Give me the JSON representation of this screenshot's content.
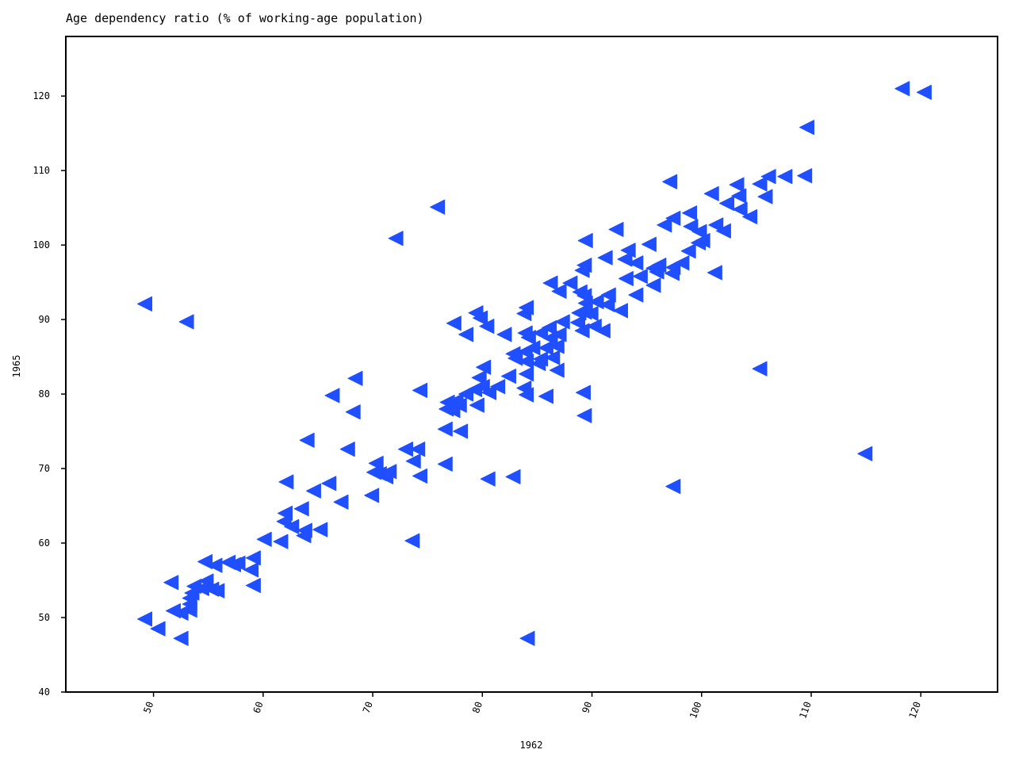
{
  "chart_data": {
    "type": "scatter",
    "title": "Age dependency ratio (% of working-age population)",
    "xlabel": "1962",
    "ylabel": "1965",
    "xlim": [
      42,
      127
    ],
    "ylim": [
      40,
      128
    ],
    "xticks": [
      50,
      60,
      70,
      80,
      90,
      100,
      110,
      120
    ],
    "yticks": [
      40,
      50,
      60,
      70,
      80,
      90,
      100,
      110,
      120
    ],
    "marker": "triangle-left",
    "color": "#1f4fff",
    "grid": false,
    "series": [
      {
        "points": [
          [
            118.3,
            121.0
          ],
          [
            120.3,
            120.5
          ],
          [
            109.6,
            115.8
          ],
          [
            97.1,
            108.5
          ],
          [
            103.2,
            108.1
          ],
          [
            105.3,
            108.2
          ],
          [
            106.1,
            109.2
          ],
          [
            107.6,
            109.2
          ],
          [
            109.4,
            109.3
          ],
          [
            100.9,
            106.9
          ],
          [
            103.4,
            106.6
          ],
          [
            105.8,
            106.5
          ],
          [
            102.3,
            105.6
          ],
          [
            103.5,
            104.8
          ],
          [
            104.4,
            103.8
          ],
          [
            97.4,
            103.6
          ],
          [
            96.6,
            102.7
          ],
          [
            98.9,
            104.3
          ],
          [
            99.0,
            102.5
          ],
          [
            99.8,
            101.8
          ],
          [
            101.3,
            102.7
          ],
          [
            102.0,
            101.9
          ],
          [
            100.1,
            100.6
          ],
          [
            99.7,
            100.3
          ],
          [
            98.8,
            99.2
          ],
          [
            101.2,
            96.3
          ],
          [
            75.9,
            105.1
          ],
          [
            72.1,
            100.9
          ],
          [
            89.4,
            100.6
          ],
          [
            92.2,
            102.1
          ],
          [
            91.2,
            98.3
          ],
          [
            93.3,
            99.3
          ],
          [
            93.0,
            98.1
          ],
          [
            95.2,
            100.1
          ],
          [
            94.0,
            97.6
          ],
          [
            89.3,
            97.3
          ],
          [
            89.1,
            96.6
          ],
          [
            86.2,
            94.9
          ],
          [
            88.0,
            94.9
          ],
          [
            87.0,
            93.8
          ],
          [
            93.1,
            95.5
          ],
          [
            94.4,
            95.8
          ],
          [
            95.6,
            94.6
          ],
          [
            94.0,
            93.3
          ],
          [
            95.6,
            96.9
          ],
          [
            96.1,
            97.3
          ],
          [
            97.4,
            97.0
          ],
          [
            98.2,
            97.6
          ],
          [
            97.3,
            96.2
          ],
          [
            95.9,
            96.4
          ],
          [
            88.9,
            93.7
          ],
          [
            89.3,
            93.2
          ],
          [
            90.4,
            92.4
          ],
          [
            91.5,
            93.3
          ],
          [
            91.4,
            92.0
          ],
          [
            92.6,
            91.2
          ],
          [
            89.3,
            91.0
          ],
          [
            89.9,
            90.8
          ],
          [
            90.2,
            89.1
          ],
          [
            91.0,
            88.5
          ],
          [
            89.1,
            88.5
          ],
          [
            88.7,
            89.6
          ],
          [
            89.4,
            92.2
          ],
          [
            88.8,
            90.9
          ],
          [
            49.2,
            92.1
          ],
          [
            53.0,
            89.7
          ],
          [
            77.4,
            89.5
          ],
          [
            79.4,
            90.9
          ],
          [
            79.8,
            90.2
          ],
          [
            80.4,
            89.1
          ],
          [
            78.5,
            88.0
          ],
          [
            83.8,
            90.8
          ],
          [
            84.0,
            91.6
          ],
          [
            86.1,
            88.9
          ],
          [
            87.3,
            89.7
          ],
          [
            87.0,
            88.0
          ],
          [
            86.8,
            86.4
          ],
          [
            82.0,
            88.0
          ],
          [
            83.9,
            88.2
          ],
          [
            85.3,
            88.2
          ],
          [
            84.2,
            87.6
          ],
          [
            86.2,
            87.5
          ],
          [
            85.8,
            86.2
          ],
          [
            82.8,
            85.4
          ],
          [
            83.9,
            85.7
          ],
          [
            84.6,
            86.2
          ],
          [
            85.3,
            84.7
          ],
          [
            86.4,
            84.9
          ],
          [
            86.8,
            83.2
          ],
          [
            83.0,
            84.8
          ],
          [
            84.0,
            84.4
          ],
          [
            85.1,
            84.1
          ],
          [
            84.0,
            82.7
          ],
          [
            83.8,
            80.8
          ],
          [
            84.0,
            79.9
          ],
          [
            85.8,
            79.7
          ],
          [
            80.1,
            83.6
          ],
          [
            79.7,
            82.2
          ],
          [
            80.0,
            81.0
          ],
          [
            81.4,
            81.0
          ],
          [
            80.6,
            80.2
          ],
          [
            79.3,
            80.6
          ],
          [
            78.5,
            80.0
          ],
          [
            77.6,
            79.1
          ],
          [
            76.8,
            78.9
          ],
          [
            77.3,
            77.8
          ],
          [
            77.9,
            78.5
          ],
          [
            76.7,
            78.0
          ],
          [
            79.5,
            78.5
          ],
          [
            89.2,
            80.2
          ],
          [
            89.3,
            77.1
          ],
          [
            82.4,
            82.4
          ],
          [
            68.4,
            82.1
          ],
          [
            66.3,
            79.8
          ],
          [
            68.2,
            77.6
          ],
          [
            74.3,
            80.5
          ],
          [
            76.6,
            75.3
          ],
          [
            78.0,
            75.0
          ],
          [
            64.0,
            73.8
          ],
          [
            67.7,
            72.6
          ],
          [
            73.0,
            72.6
          ],
          [
            74.1,
            72.6
          ],
          [
            73.7,
            71.0
          ],
          [
            76.6,
            70.6
          ],
          [
            70.3,
            70.7
          ],
          [
            70.1,
            69.5
          ],
          [
            70.6,
            69.3
          ],
          [
            71.2,
            68.9
          ],
          [
            71.5,
            69.6
          ],
          [
            74.3,
            69.0
          ],
          [
            66.0,
            68.0
          ],
          [
            62.1,
            68.2
          ],
          [
            64.6,
            67.0
          ],
          [
            67.1,
            65.5
          ],
          [
            69.9,
            66.4
          ],
          [
            80.5,
            68.6
          ],
          [
            82.8,
            68.9
          ],
          [
            97.4,
            67.6
          ],
          [
            105.3,
            83.4
          ],
          [
            114.9,
            72.0
          ],
          [
            62.0,
            64.0
          ],
          [
            63.5,
            64.6
          ],
          [
            61.9,
            62.9
          ],
          [
            62.6,
            62.2
          ],
          [
            63.8,
            61.7
          ],
          [
            63.7,
            61.0
          ],
          [
            65.2,
            61.8
          ],
          [
            60.1,
            60.5
          ],
          [
            61.6,
            60.2
          ],
          [
            73.6,
            60.3
          ],
          [
            84.1,
            47.2
          ],
          [
            59.1,
            58.0
          ],
          [
            58.9,
            56.4
          ],
          [
            59.1,
            54.3
          ],
          [
            54.7,
            57.5
          ],
          [
            55.6,
            57.0
          ],
          [
            56.8,
            57.4
          ],
          [
            57.7,
            57.3
          ],
          [
            57.3,
            57.1
          ],
          [
            51.6,
            54.7
          ],
          [
            53.7,
            54.2
          ],
          [
            54.8,
            54.9
          ],
          [
            55.3,
            53.8
          ],
          [
            55.8,
            53.6
          ],
          [
            54.4,
            53.9
          ],
          [
            53.5,
            53.3
          ],
          [
            53.3,
            52.6
          ],
          [
            53.3,
            51.8
          ],
          [
            53.3,
            51.0
          ],
          [
            52.5,
            50.6
          ],
          [
            51.8,
            50.9
          ],
          [
            49.2,
            49.8
          ],
          [
            50.4,
            48.5
          ],
          [
            52.5,
            47.2
          ]
        ]
      }
    ]
  }
}
